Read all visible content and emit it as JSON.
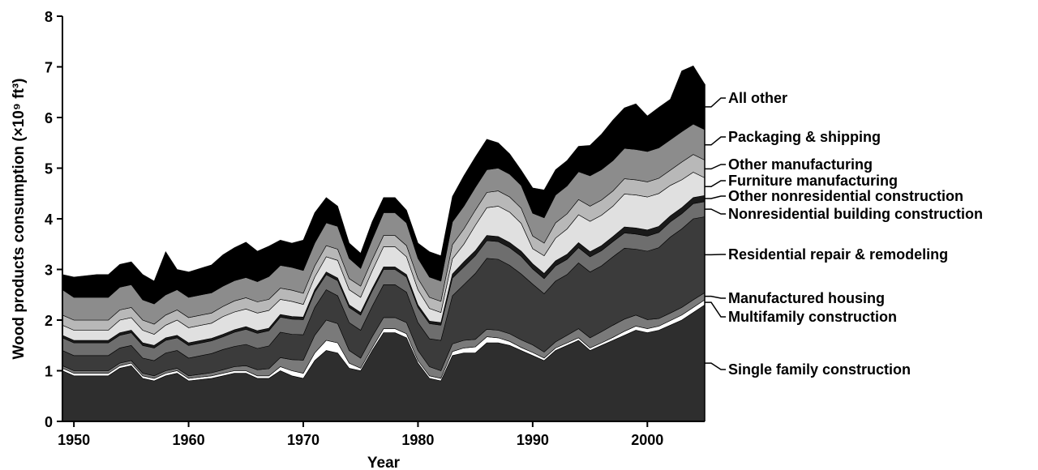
{
  "chart_data": {
    "type": "area",
    "stacked": true,
    "xlabel": "Year",
    "ylabel": "Wood products consumption (×10⁹ ft³)",
    "xlim": [
      1949,
      2005
    ],
    "ylim": [
      0,
      8
    ],
    "x_ticks": [
      1950,
      1960,
      1970,
      1980,
      1990,
      2000
    ],
    "y_ticks": [
      0,
      1,
      2,
      3,
      4,
      5,
      6,
      7,
      8
    ],
    "legend_position": "right",
    "x": [
      1949,
      1950,
      1952,
      1953,
      1954,
      1955,
      1956,
      1957,
      1958,
      1959,
      1960,
      1962,
      1963,
      1964,
      1965,
      1966,
      1967,
      1968,
      1969,
      1970,
      1971,
      1972,
      1973,
      1974,
      1975,
      1976,
      1977,
      1978,
      1979,
      1980,
      1981,
      1982,
      1983,
      1984,
      1985,
      1986,
      1987,
      1988,
      1989,
      1990,
      1991,
      1992,
      1993,
      1994,
      1995,
      1996,
      1997,
      1998,
      1999,
      2000,
      2001,
      2002,
      2003,
      2004,
      2005
    ],
    "series": [
      {
        "name": "Single family construction",
        "color": "#2e2e2e",
        "values": [
          1.0,
          0.9,
          0.9,
          0.9,
          1.05,
          1.1,
          0.85,
          0.8,
          0.9,
          0.95,
          0.8,
          0.85,
          0.9,
          0.95,
          0.95,
          0.85,
          0.85,
          1.0,
          0.9,
          0.85,
          1.2,
          1.4,
          1.35,
          1.05,
          1.0,
          1.4,
          1.75,
          1.75,
          1.65,
          1.15,
          0.85,
          0.8,
          1.3,
          1.35,
          1.35,
          1.55,
          1.55,
          1.5,
          1.4,
          1.3,
          1.2,
          1.4,
          1.5,
          1.6,
          1.4,
          1.5,
          1.6,
          1.7,
          1.8,
          1.75,
          1.8,
          1.9,
          2.0,
          2.15,
          2.3
        ]
      },
      {
        "name": "Multifamily construction",
        "color": "#ffffff",
        "values": [
          0.05,
          0.05,
          0.05,
          0.05,
          0.05,
          0.05,
          0.05,
          0.05,
          0.05,
          0.05,
          0.05,
          0.05,
          0.05,
          0.05,
          0.05,
          0.05,
          0.05,
          0.08,
          0.1,
          0.1,
          0.15,
          0.2,
          0.2,
          0.1,
          0.05,
          0.05,
          0.08,
          0.08,
          0.08,
          0.05,
          0.05,
          0.05,
          0.08,
          0.1,
          0.12,
          0.12,
          0.1,
          0.08,
          0.06,
          0.06,
          0.05,
          0.05,
          0.05,
          0.05,
          0.05,
          0.05,
          0.06,
          0.08,
          0.08,
          0.08,
          0.08,
          0.09,
          0.1,
          0.1,
          0.1
        ]
      },
      {
        "name": "Manufactured housing",
        "color": "#7a7a7a",
        "values": [
          0.05,
          0.05,
          0.05,
          0.05,
          0.05,
          0.05,
          0.05,
          0.05,
          0.05,
          0.05,
          0.05,
          0.06,
          0.07,
          0.08,
          0.1,
          0.12,
          0.14,
          0.18,
          0.22,
          0.26,
          0.35,
          0.4,
          0.38,
          0.25,
          0.2,
          0.22,
          0.22,
          0.22,
          0.22,
          0.2,
          0.18,
          0.15,
          0.15,
          0.15,
          0.15,
          0.15,
          0.15,
          0.15,
          0.15,
          0.15,
          0.12,
          0.12,
          0.15,
          0.18,
          0.2,
          0.22,
          0.24,
          0.24,
          0.22,
          0.18,
          0.15,
          0.15,
          0.15,
          0.15,
          0.14
        ]
      },
      {
        "name": "Residential repair & remodeling",
        "color": "#3b3b3b",
        "values": [
          0.3,
          0.3,
          0.3,
          0.3,
          0.3,
          0.3,
          0.3,
          0.3,
          0.35,
          0.35,
          0.35,
          0.38,
          0.4,
          0.4,
          0.42,
          0.42,
          0.45,
          0.5,
          0.5,
          0.5,
          0.55,
          0.6,
          0.55,
          0.55,
          0.55,
          0.6,
          0.65,
          0.65,
          0.6,
          0.55,
          0.55,
          0.6,
          0.95,
          1.1,
          1.3,
          1.4,
          1.4,
          1.35,
          1.3,
          1.2,
          1.15,
          1.2,
          1.2,
          1.3,
          1.3,
          1.3,
          1.35,
          1.4,
          1.3,
          1.35,
          1.4,
          1.5,
          1.55,
          1.6,
          1.5
        ]
      },
      {
        "name": "Nonresidential building construction",
        "color": "#6e6e6e",
        "values": [
          0.25,
          0.25,
          0.25,
          0.25,
          0.25,
          0.25,
          0.25,
          0.25,
          0.25,
          0.25,
          0.25,
          0.25,
          0.25,
          0.28,
          0.3,
          0.3,
          0.3,
          0.3,
          0.3,
          0.3,
          0.3,
          0.3,
          0.3,
          0.3,
          0.3,
          0.3,
          0.3,
          0.3,
          0.3,
          0.3,
          0.3,
          0.3,
          0.35,
          0.35,
          0.35,
          0.35,
          0.35,
          0.35,
          0.35,
          0.3,
          0.3,
          0.3,
          0.3,
          0.3,
          0.3,
          0.3,
          0.3,
          0.3,
          0.3,
          0.3,
          0.3,
          0.3,
          0.3,
          0.3,
          0.3
        ]
      },
      {
        "name": "Other nonresidential construction",
        "color": "#1a1a1a",
        "values": [
          0.05,
          0.05,
          0.05,
          0.05,
          0.05,
          0.05,
          0.05,
          0.05,
          0.05,
          0.05,
          0.05,
          0.05,
          0.05,
          0.05,
          0.05,
          0.05,
          0.05,
          0.05,
          0.05,
          0.05,
          0.05,
          0.05,
          0.05,
          0.05,
          0.05,
          0.05,
          0.05,
          0.05,
          0.05,
          0.05,
          0.05,
          0.05,
          0.08,
          0.1,
          0.1,
          0.1,
          0.1,
          0.1,
          0.1,
          0.1,
          0.1,
          0.1,
          0.1,
          0.1,
          0.1,
          0.1,
          0.1,
          0.12,
          0.12,
          0.12,
          0.12,
          0.12,
          0.12,
          0.12,
          0.12
        ]
      },
      {
        "name": "Furniture manufacturing",
        "color": "#e0e0e0",
        "values": [
          0.2,
          0.2,
          0.2,
          0.2,
          0.25,
          0.25,
          0.25,
          0.22,
          0.25,
          0.3,
          0.3,
          0.3,
          0.35,
          0.35,
          0.35,
          0.35,
          0.35,
          0.3,
          0.3,
          0.25,
          0.25,
          0.3,
          0.35,
          0.3,
          0.3,
          0.35,
          0.4,
          0.4,
          0.35,
          0.3,
          0.25,
          0.2,
          0.3,
          0.35,
          0.5,
          0.55,
          0.6,
          0.6,
          0.55,
          0.3,
          0.35,
          0.45,
          0.5,
          0.55,
          0.6,
          0.6,
          0.6,
          0.65,
          0.65,
          0.65,
          0.65,
          0.6,
          0.55,
          0.5,
          0.35
        ]
      },
      {
        "name": "Other manufacturing",
        "color": "#b8b8b8",
        "values": [
          0.2,
          0.2,
          0.2,
          0.2,
          0.2,
          0.2,
          0.2,
          0.2,
          0.2,
          0.2,
          0.2,
          0.2,
          0.2,
          0.22,
          0.22,
          0.22,
          0.22,
          0.22,
          0.22,
          0.22,
          0.22,
          0.22,
          0.22,
          0.22,
          0.22,
          0.22,
          0.22,
          0.22,
          0.22,
          0.22,
          0.22,
          0.22,
          0.28,
          0.3,
          0.3,
          0.3,
          0.3,
          0.3,
          0.3,
          0.25,
          0.25,
          0.3,
          0.3,
          0.3,
          0.3,
          0.3,
          0.3,
          0.3,
          0.3,
          0.3,
          0.3,
          0.3,
          0.35,
          0.35,
          0.35
        ]
      },
      {
        "name": "Packaging & shipping",
        "color": "#8c8c8c",
        "values": [
          0.5,
          0.45,
          0.45,
          0.45,
          0.45,
          0.45,
          0.4,
          0.4,
          0.4,
          0.4,
          0.4,
          0.4,
          0.4,
          0.4,
          0.4,
          0.4,
          0.45,
          0.45,
          0.45,
          0.45,
          0.45,
          0.45,
          0.45,
          0.4,
          0.35,
          0.4,
          0.45,
          0.45,
          0.45,
          0.4,
          0.4,
          0.4,
          0.45,
          0.45,
          0.45,
          0.45,
          0.45,
          0.45,
          0.45,
          0.45,
          0.5,
          0.55,
          0.55,
          0.55,
          0.6,
          0.6,
          0.6,
          0.6,
          0.6,
          0.6,
          0.6,
          0.6,
          0.6,
          0.6,
          0.6
        ]
      },
      {
        "name": "All other",
        "color": "#000000",
        "values": [
          0.3,
          0.4,
          0.45,
          0.45,
          0.45,
          0.45,
          0.5,
          0.45,
          0.85,
          0.4,
          0.5,
          0.55,
          0.62,
          0.65,
          0.7,
          0.6,
          0.6,
          0.5,
          0.48,
          0.6,
          0.6,
          0.5,
          0.4,
          0.3,
          0.3,
          0.35,
          0.3,
          0.3,
          0.25,
          0.3,
          0.5,
          0.5,
          0.5,
          0.6,
          0.6,
          0.6,
          0.5,
          0.4,
          0.3,
          0.5,
          0.55,
          0.5,
          0.5,
          0.5,
          0.6,
          0.7,
          0.8,
          0.8,
          0.9,
          0.7,
          0.8,
          0.8,
          1.2,
          1.15,
          0.9
        ]
      }
    ]
  }
}
